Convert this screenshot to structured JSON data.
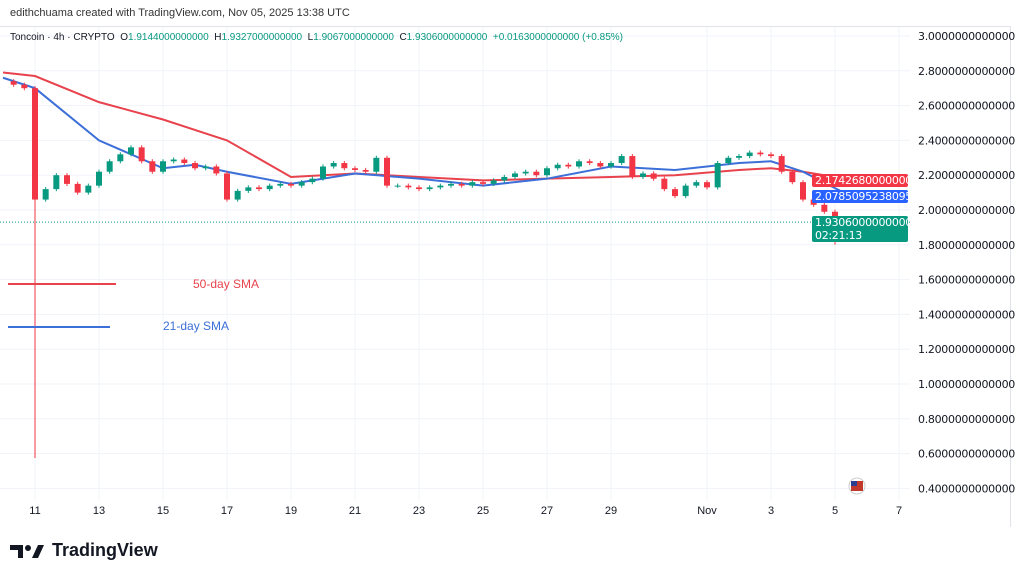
{
  "credit": "edithchuama created with TradingView.com, Nov 05, 2025 13:38 UTC",
  "legend": {
    "symbol": "Toncoin · 4h · CRYPTO",
    "o_label": "O",
    "o": "1.9144000000000",
    "h_label": "H",
    "h": "1.9327000000000",
    "l_label": "L",
    "l": "1.9067000000000",
    "c_label": "C",
    "c": "1.9306000000000",
    "change": "+0.0163000000000 (+0.85%)"
  },
  "annotations": {
    "sma50": {
      "label": "50-day SMA",
      "color": "#e8424d"
    },
    "sma21": {
      "label": "21-day SMA",
      "color": "#3c6fd8"
    }
  },
  "price_labels": {
    "sma50": {
      "value": "2.1742680000000",
      "color": "#f23645"
    },
    "sma21": {
      "value": "2.0785095238095",
      "color": "#2962ff"
    },
    "last": {
      "value": "1.9306000000000",
      "countdown": "02:21:13",
      "color": "#089981"
    }
  },
  "footer": {
    "brand": "TradingView"
  },
  "chart_data": {
    "type": "candlestick",
    "title": "Toncoin · 4h · CRYPTO",
    "ylim": [
      0.4,
      3.0
    ],
    "y_ticks": [
      "3.0000000000000",
      "2.8000000000000",
      "2.6000000000000",
      "2.4000000000000",
      "2.2000000000000",
      "2.0000000000000",
      "1.8000000000000",
      "1.6000000000000",
      "1.4000000000000",
      "1.2000000000000",
      "1.0000000000000",
      "0.8000000000000",
      "0.6000000000000",
      "0.4000000000000"
    ],
    "x_ticks": [
      "11",
      "13",
      "15",
      "17",
      "19",
      "21",
      "23",
      "25",
      "27",
      "29",
      "Nov",
      "3",
      "5",
      "7"
    ],
    "grid": true,
    "up_color": "#089981",
    "down_color": "#f23645",
    "crash_low": 0.575,
    "last_low": 1.8,
    "candles_close": [
      [
        "Oct 10 08:00",
        2.72
      ],
      [
        "Oct 10 16:00",
        2.7
      ],
      [
        "Oct 11 00:00",
        2.06
      ],
      [
        "Oct 11 08:00",
        2.12
      ],
      [
        "Oct 11 16:00",
        2.2
      ],
      [
        "Oct 12 00:00",
        2.15
      ],
      [
        "Oct 12 08:00",
        2.1
      ],
      [
        "Oct 12 16:00",
        2.14
      ],
      [
        "Oct 13 00:00",
        2.22
      ],
      [
        "Oct 13 08:00",
        2.28
      ],
      [
        "Oct 13 16:00",
        2.32
      ],
      [
        "Oct 14 00:00",
        2.36
      ],
      [
        "Oct 14 08:00",
        2.28
      ],
      [
        "Oct 14 16:00",
        2.22
      ],
      [
        "Oct 15 00:00",
        2.28
      ],
      [
        "Oct 15 08:00",
        2.29
      ],
      [
        "Oct 15 16:00",
        2.27
      ],
      [
        "Oct 16 00:00",
        2.24
      ],
      [
        "Oct 16 08:00",
        2.25
      ],
      [
        "Oct 16 16:00",
        2.21
      ],
      [
        "Oct 17 00:00",
        2.06
      ],
      [
        "Oct 17 08:00",
        2.11
      ],
      [
        "Oct 17 16:00",
        2.13
      ],
      [
        "Oct 18 00:00",
        2.12
      ],
      [
        "Oct 18 08:00",
        2.14
      ],
      [
        "Oct 18 16:00",
        2.15
      ],
      [
        "Oct 19 00:00",
        2.14
      ],
      [
        "Oct 19 08:00",
        2.16
      ],
      [
        "Oct 19 16:00",
        2.18
      ],
      [
        "Oct 20 00:00",
        2.25
      ],
      [
        "Oct 20 08:00",
        2.27
      ],
      [
        "Oct 20 16:00",
        2.24
      ],
      [
        "Oct 21 00:00",
        2.23
      ],
      [
        "Oct 21 08:00",
        2.22
      ],
      [
        "Oct 21 16:00",
        2.3
      ],
      [
        "Oct 22 00:00",
        2.14
      ],
      [
        "Oct 22 08:00",
        2.14
      ],
      [
        "Oct 22 16:00",
        2.13
      ],
      [
        "Oct 23 00:00",
        2.12
      ],
      [
        "Oct 23 08:00",
        2.13
      ],
      [
        "Oct 23 16:00",
        2.14
      ],
      [
        "Oct 24 00:00",
        2.15
      ],
      [
        "Oct 24 08:00",
        2.14
      ],
      [
        "Oct 24 16:00",
        2.16
      ],
      [
        "Oct 25 00:00",
        2.15
      ],
      [
        "Oct 25 08:00",
        2.17
      ],
      [
        "Oct 25 16:00",
        2.19
      ],
      [
        "Oct 26 00:00",
        2.21
      ],
      [
        "Oct 26 08:00",
        2.22
      ],
      [
        "Oct 26 16:00",
        2.2
      ],
      [
        "Oct 27 00:00",
        2.24
      ],
      [
        "Oct 27 08:00",
        2.26
      ],
      [
        "Oct 27 16:00",
        2.25
      ],
      [
        "Oct 28 00:00",
        2.28
      ],
      [
        "Oct 28 08:00",
        2.27
      ],
      [
        "Oct 28 16:00",
        2.25
      ],
      [
        "Oct 29 00:00",
        2.27
      ],
      [
        "Oct 29 08:00",
        2.31
      ],
      [
        "Oct 29 16:00",
        2.19
      ],
      [
        "Oct 30 00:00",
        2.21
      ],
      [
        "Oct 30 08:00",
        2.18
      ],
      [
        "Oct 30 16:00",
        2.12
      ],
      [
        "Oct 31 00:00",
        2.08
      ],
      [
        "Oct 31 08:00",
        2.14
      ],
      [
        "Oct 31 16:00",
        2.16
      ],
      [
        "Nov 01 00:00",
        2.13
      ],
      [
        "Nov 01 08:00",
        2.27
      ],
      [
        "Nov 01 16:00",
        2.3
      ],
      [
        "Nov 02 00:00",
        2.31
      ],
      [
        "Nov 02 08:00",
        2.33
      ],
      [
        "Nov 02 16:00",
        2.32
      ],
      [
        "Nov 03 00:00",
        2.31
      ],
      [
        "Nov 03 08:00",
        2.22
      ],
      [
        "Nov 03 16:00",
        2.16
      ],
      [
        "Nov 04 00:00",
        2.06
      ],
      [
        "Nov 04 08:00",
        2.03
      ],
      [
        "Nov 04 16:00",
        1.99
      ],
      [
        "Nov 05 00:00",
        1.91
      ],
      [
        "Nov 05 08:00",
        1.94
      ],
      [
        "Nov 05 12:00",
        1.9306
      ]
    ],
    "series": [
      {
        "name": "50-day SMA",
        "color": "#e8424d",
        "points": [
          [
            "Oct 10 00:00",
            2.79
          ],
          [
            "Oct 11 00:00",
            2.77
          ],
          [
            "Oct 13 00:00",
            2.62
          ],
          [
            "Oct 15 00:00",
            2.52
          ],
          [
            "Oct 17 00:00",
            2.4
          ],
          [
            "Oct 19 00:00",
            2.19
          ],
          [
            "Oct 21 00:00",
            2.21
          ],
          [
            "Oct 23 00:00",
            2.19
          ],
          [
            "Oct 25 00:00",
            2.17
          ],
          [
            "Oct 27 00:00",
            2.18
          ],
          [
            "Oct 29 00:00",
            2.19
          ],
          [
            "Oct 31 00:00",
            2.2
          ],
          [
            "Nov 02 00:00",
            2.23
          ],
          [
            "Nov 03 00:00",
            2.24
          ],
          [
            "Nov 04 00:00",
            2.22
          ],
          [
            "Nov 05 12:00",
            2.1743
          ]
        ]
      },
      {
        "name": "21-day SMA",
        "color": "#3c6fd8",
        "points": [
          [
            "Oct 10 00:00",
            2.76
          ],
          [
            "Oct 11 00:00",
            2.7
          ],
          [
            "Oct 13 00:00",
            2.4
          ],
          [
            "Oct 15 00:00",
            2.24
          ],
          [
            "Oct 16 00:00",
            2.26
          ],
          [
            "Oct 17 00:00",
            2.22
          ],
          [
            "Oct 19 00:00",
            2.15
          ],
          [
            "Oct 21 00:00",
            2.21
          ],
          [
            "Oct 23 00:00",
            2.18
          ],
          [
            "Oct 25 00:00",
            2.14
          ],
          [
            "Oct 27 00:00",
            2.18
          ],
          [
            "Oct 29 00:00",
            2.25
          ],
          [
            "Oct 31 00:00",
            2.23
          ],
          [
            "Nov 02 00:00",
            2.27
          ],
          [
            "Nov 03 00:00",
            2.28
          ],
          [
            "Nov 04 00:00",
            2.22
          ],
          [
            "Nov 05 12:00",
            2.0785
          ]
        ]
      }
    ]
  }
}
